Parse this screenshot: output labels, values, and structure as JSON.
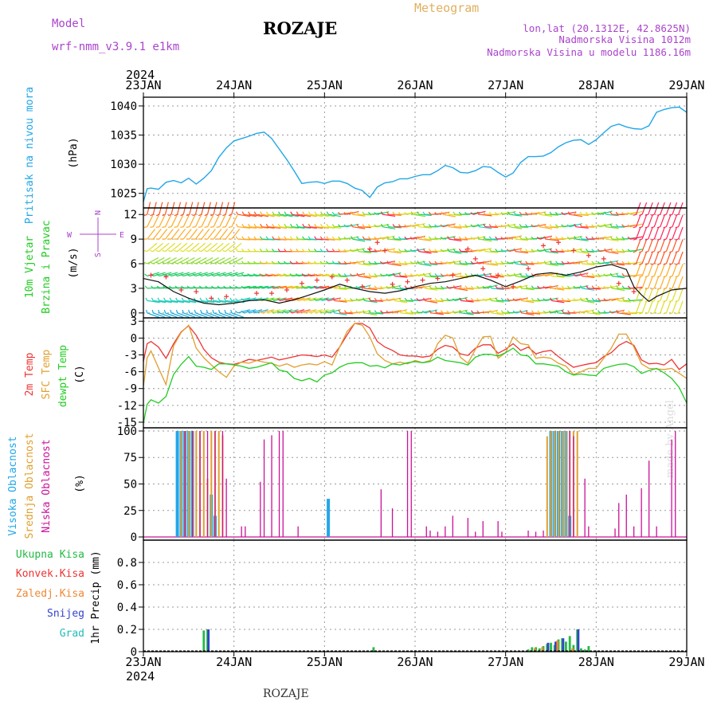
{
  "header": {
    "model_label": "Model",
    "model_name": "wrf-nmm_v3.9.1 e1km",
    "location_title": "ROZAJE",
    "meteogram_label": "Meteogram",
    "coords": "lon,lat (20.1312E, 42.8625N)",
    "altitude": "Nadmorska Visina 1012m",
    "model_altitude": "Nadmorska Visina u modelu 1186.16m",
    "year": "2024",
    "footer_location": "ROZAJE",
    "signature": "made by Angel"
  },
  "colors": {
    "pressure": "#22a6e8",
    "temp2m": "#ee3333",
    "sfc": "#e0a030",
    "dewpt": "#22cc22",
    "cloud_high": "#22a6e8",
    "cloud_mid": "#e0a030",
    "cloud_low": "#cc1199",
    "precip_total": "#22bb44",
    "precip_conv": "#ee3333",
    "precip_frozen": "#ee8833",
    "precip_snow": "#3344cc",
    "precip_grad": "#22bbbb",
    "gust": "#ee3333",
    "wind_line": "#111111",
    "compass": "#aa44cc"
  },
  "time_axis": {
    "top_labels": [
      "23JAN",
      "24JAN",
      "25JAN",
      "26JAN",
      "27JAN",
      "28JAN",
      "29JAN"
    ],
    "bottom_labels": [
      "23JAN",
      "24JAN",
      "25JAN",
      "26JAN",
      "27JAN",
      "28JAN",
      "29JAN"
    ],
    "range_hours": [
      0,
      144
    ]
  },
  "chart_data": [
    {
      "type": "line",
      "panel": "pressure",
      "ylabel_main": "Pritisak na nivou mora",
      "ylabel_unit": "(hPa)",
      "yticks": [
        1025,
        1030,
        1035,
        1040
      ],
      "ylim": [
        1022.5,
        1041.5
      ],
      "series": [
        {
          "x": [
            0,
            1,
            2,
            4,
            6,
            8,
            10,
            12,
            14,
            16,
            18,
            20,
            22,
            24,
            26,
            28,
            30,
            32,
            34,
            36,
            38,
            40,
            42,
            44,
            46,
            48,
            50,
            52,
            54,
            56,
            58,
            60,
            62,
            64,
            66,
            68,
            70,
            72,
            74,
            76,
            78,
            80,
            82,
            84,
            86,
            88,
            90,
            92,
            94,
            96,
            98,
            100,
            102,
            104,
            106,
            108,
            110,
            112,
            114,
            116,
            118,
            120,
            122,
            124,
            126,
            128,
            130,
            132,
            134,
            136,
            138,
            140,
            142,
            144
          ],
          "values": [
            1023.6,
            1025.8,
            1025.9,
            1025.7,
            1026.9,
            1027.2,
            1026.8,
            1027.6,
            1026.6,
            1027.6,
            1028.9,
            1031.2,
            1032.8,
            1034.0,
            1034.4,
            1034.8,
            1035.3,
            1035.5,
            1034.4,
            1032.6,
            1030.8,
            1028.8,
            1026.7,
            1026.9,
            1027.0,
            1026.7,
            1027.1,
            1027.1,
            1026.7,
            1025.9,
            1025.5,
            1024.3,
            1026.1,
            1026.8,
            1027.0,
            1027.5,
            1027.5,
            1027.9,
            1028.2,
            1028.2,
            1028.9,
            1029.8,
            1029.4,
            1028.6,
            1028.5,
            1028.9,
            1029.6,
            1029.5,
            1028.6,
            1027.8,
            1028.5,
            1030.3,
            1031.3,
            1031.3,
            1031.4,
            1032.0,
            1033.0,
            1033.7,
            1034.1,
            1034.2,
            1033.4,
            1034.2,
            1035.4,
            1036.5,
            1036.9,
            1036.4,
            1036.1,
            1036.0,
            1036.6,
            1038.9,
            1039.4,
            1039.7,
            1039.8,
            1038.9
          ]
        }
      ]
    },
    {
      "type": "barbs",
      "panel": "wind",
      "ylabel_main": "10m Vjetar",
      "ylabel_sub": "Brzina i Pravac",
      "ylabel_unit": "(m/s)",
      "compass": {
        "n": "N",
        "s": "S",
        "w": "W",
        "e": "E"
      },
      "yticks": [
        0,
        3,
        6,
        9,
        12
      ],
      "ylim": [
        -0.6,
        12.8
      ],
      "series": [
        {
          "name": "wind speed",
          "x": [
            0,
            4,
            8,
            12,
            16,
            20,
            24,
            28,
            32,
            36,
            40,
            44,
            48,
            52,
            56,
            60,
            64,
            68,
            72,
            76,
            80,
            84,
            88,
            92,
            96,
            100,
            104,
            108,
            112,
            116,
            120,
            124,
            128,
            130,
            132,
            134,
            136,
            140,
            144
          ],
          "values": [
            4.2,
            3.8,
            2.6,
            1.8,
            1.2,
            1.0,
            1.2,
            1.5,
            1.6,
            1.2,
            1.6,
            2.2,
            2.8,
            3.5,
            3.0,
            2.6,
            2.4,
            2.7,
            3.2,
            3.6,
            3.8,
            4.2,
            4.6,
            4.0,
            3.2,
            3.9,
            4.7,
            4.9,
            4.6,
            5.0,
            5.6,
            5.9,
            5.3,
            3.2,
            2.2,
            1.4,
            2.0,
            2.8,
            3.0
          ]
        },
        {
          "name": "gust",
          "x": [
            2,
            6,
            10,
            14,
            18,
            22,
            30,
            34,
            38,
            42,
            46,
            50,
            54,
            58,
            60,
            62,
            64,
            66,
            70,
            74,
            78,
            82,
            86,
            88,
            90,
            94,
            98,
            102,
            106,
            110,
            114,
            118,
            122,
            126,
            130
          ],
          "values": [
            4.6,
            4.4,
            2.8,
            2.6,
            1.8,
            2.0,
            2.4,
            2.4,
            2.8,
            3.6,
            4.0,
            4.4,
            4.0,
            3.2,
            7.8,
            8.6,
            7.6,
            3.5,
            3.8,
            4.0,
            4.2,
            4.6,
            7.8,
            6.6,
            5.4,
            4.6,
            3.2,
            5.4,
            8.2,
            8.6,
            7.6,
            7.0,
            6.6,
            3.6,
            2.6
          ]
        }
      ]
    },
    {
      "type": "line",
      "panel": "temperature",
      "ylabel_main": "2m Temp",
      "ylabel_sub": "SFC Temp",
      "ylabel_sub2": "dewpt Temp",
      "ylabel_unit": "(C)",
      "yticks": [
        3,
        0,
        -3,
        -6,
        -9,
        -12,
        -15
      ],
      "ylim": [
        -16,
        3.6
      ],
      "x": [
        0,
        1,
        2,
        4,
        6,
        8,
        10,
        12,
        14,
        16,
        18,
        20,
        22,
        24,
        26,
        28,
        30,
        32,
        34,
        36,
        38,
        40,
        42,
        44,
        46,
        48,
        50,
        52,
        54,
        56,
        58,
        60,
        62,
        64,
        66,
        68,
        70,
        72,
        74,
        76,
        78,
        80,
        82,
        84,
        86,
        88,
        90,
        92,
        94,
        96,
        98,
        100,
        102,
        104,
        106,
        108,
        110,
        112,
        114,
        116,
        118,
        120,
        122,
        124,
        126,
        128,
        130,
        132,
        134,
        136,
        138,
        140,
        142,
        144
      ],
      "series": [
        {
          "name": "2m Temp",
          "values": [
            -4.2,
            -1.0,
            -0.6,
            -1.6,
            -3.6,
            -1.0,
            1.1,
            2.2,
            0.5,
            -2.0,
            -3.5,
            -4.3,
            -4.6,
            -4.7,
            -4.3,
            -3.8,
            -4.0,
            -3.7,
            -3.4,
            -3.9,
            -3.6,
            -3.3,
            -3.0,
            -3.1,
            -3.3,
            -3.0,
            -3.4,
            -1.6,
            0.6,
            2.6,
            2.6,
            1.8,
            -0.6,
            -1.6,
            -2.2,
            -3.0,
            -3.2,
            -3.2,
            -3.4,
            -3.2,
            -2.0,
            -1.3,
            -1.6,
            -2.8,
            -3.1,
            -1.8,
            -1.2,
            -1.2,
            -2.7,
            -2.0,
            -1.0,
            -2.2,
            -1.6,
            -2.8,
            -2.4,
            -2.2,
            -3.3,
            -4.3,
            -5.2,
            -4.9,
            -4.6,
            -4.4,
            -3.3,
            -2.6,
            -1.3,
            -0.6,
            -1.3,
            -3.9,
            -4.6,
            -4.5,
            -4.8,
            -3.8,
            -5.6,
            -4.6
          ]
        },
        {
          "name": "SFC Temp",
          "values": [
            -8.6,
            -3.5,
            -2.3,
            -5.3,
            -8.3,
            -1.4,
            1.0,
            2.3,
            -1.8,
            -3.5,
            -4.8,
            -6.0,
            -7.0,
            -5.0,
            -4.3,
            -4.5,
            -4.0,
            -4.3,
            -4.5,
            -5.0,
            -4.6,
            -5.2,
            -4.8,
            -4.6,
            -4.8,
            -4.2,
            -4.8,
            -1.6,
            1.2,
            2.6,
            2.3,
            0.2,
            -2.8,
            -4.0,
            -4.6,
            -4.3,
            -4.6,
            -4.0,
            -4.4,
            -4.0,
            -1.0,
            0.5,
            0.0,
            -3.4,
            -4.5,
            -2.0,
            0.2,
            0.3,
            -3.6,
            -2.6,
            0.2,
            -1.0,
            -1.2,
            -3.6,
            -3.4,
            -3.6,
            -4.5,
            -5.0,
            -6.5,
            -6.0,
            -5.4,
            -5.4,
            -3.6,
            -1.8,
            0.7,
            0.7,
            -1.6,
            -4.6,
            -5.4,
            -5.5,
            -5.6,
            -5.4,
            -6.3,
            -7.2
          ]
        },
        {
          "name": "dewpt Temp",
          "values": [
            -15.2,
            -11.8,
            -11.0,
            -11.6,
            -10.4,
            -6.5,
            -4.7,
            -3.3,
            -5.0,
            -5.2,
            -5.6,
            -4.6,
            -4.6,
            -4.8,
            -5.0,
            -5.4,
            -5.2,
            -4.8,
            -4.4,
            -5.7,
            -6.0,
            -7.2,
            -7.6,
            -7.2,
            -7.8,
            -6.6,
            -6.2,
            -5.2,
            -4.6,
            -4.4,
            -4.4,
            -5.0,
            -4.9,
            -5.3,
            -4.6,
            -4.8,
            -4.4,
            -4.2,
            -4.4,
            -4.2,
            -3.4,
            -4.0,
            -4.2,
            -4.4,
            -4.8,
            -3.4,
            -2.9,
            -2.9,
            -3.2,
            -2.6,
            -1.8,
            -3.0,
            -3.2,
            -4.6,
            -4.6,
            -4.8,
            -5.0,
            -6.0,
            -6.6,
            -6.4,
            -6.6,
            -6.7,
            -5.4,
            -5.0,
            -4.7,
            -4.6,
            -5.1,
            -6.3,
            -5.8,
            -5.4,
            -6.2,
            -7.2,
            -8.8,
            -11.6
          ]
        }
      ]
    },
    {
      "type": "bar",
      "panel": "clouds",
      "ylabel_main": "Visoka Oblacnost",
      "ylabel_sub": "Srednja Oblacnost",
      "ylabel_sub2": "Niska Oblacnost",
      "ylabel_unit": "(%)",
      "yticks": [
        0,
        25,
        50,
        75,
        100
      ],
      "ylim": [
        -3,
        103
      ],
      "series": [
        {
          "name": "Visoka Oblacnost",
          "x": [
            9,
            10,
            11,
            12,
            13,
            18,
            19,
            49,
            108,
            109,
            110,
            111,
            112,
            113
          ],
          "values": [
            100,
            100,
            100,
            100,
            100,
            40,
            20,
            36,
            100,
            100,
            100,
            100,
            100,
            20
          ]
        },
        {
          "name": "Srednja Oblacnost",
          "x": [
            10,
            11,
            12,
            13,
            14,
            15,
            16,
            17,
            18,
            19,
            20,
            21,
            107,
            108,
            109,
            110,
            111,
            112,
            113,
            114,
            115
          ],
          "values": [
            100,
            100,
            100,
            100,
            100,
            100,
            100,
            55,
            100,
            100,
            100,
            96,
            95,
            100,
            100,
            100,
            100,
            100,
            100,
            100,
            100
          ]
        },
        {
          "name": "Niska Oblacnost",
          "x": [
            11,
            13,
            15,
            17,
            19,
            21,
            22,
            26,
            27,
            31,
            32,
            34,
            36,
            37,
            41,
            63,
            66,
            70,
            71,
            75,
            76,
            78,
            80,
            82,
            86,
            88,
            90,
            94,
            95,
            102,
            104,
            106,
            113,
            114,
            117,
            118,
            125,
            126,
            128,
            130,
            132,
            134,
            136,
            140,
            141
          ],
          "values": [
            100,
            100,
            100,
            100,
            100,
            100,
            55,
            10,
            10,
            52,
            92,
            96,
            100,
            100,
            10,
            45,
            27,
            100,
            100,
            10,
            6,
            5,
            10,
            20,
            18,
            5,
            15,
            15,
            5,
            6,
            5,
            6,
            100,
            95,
            55,
            10,
            8,
            32,
            40,
            10,
            46,
            72,
            10,
            92,
            100
          ]
        }
      ]
    },
    {
      "type": "bar",
      "panel": "precip",
      "legend": [
        "Ukupna Kisa",
        "Konvek.Kisa",
        "Zaledj.Kisa",
        "Snijeg",
        "Grad"
      ],
      "ylabel_unit": "1hr Precip (mm)",
      "yticks": [
        0,
        0.2,
        0.4,
        0.6,
        0.8
      ],
      "ylim": [
        0,
        1.0
      ],
      "series": [
        {
          "name": "Ukupna Kisa",
          "x": [
            16,
            17,
            61,
            102,
            103,
            104,
            105,
            106,
            107,
            108,
            109,
            110,
            111,
            112,
            113,
            114,
            115,
            116,
            117,
            118
          ],
          "values": [
            0.19,
            0.2,
            0.04,
            0.02,
            0.04,
            0.04,
            0.03,
            0.05,
            0.07,
            0.08,
            0.06,
            0.11,
            0.12,
            0.09,
            0.14,
            0.06,
            0.2,
            0.03,
            0.02,
            0.05
          ]
        },
        {
          "name": "Snijeg",
          "x": [
            17,
            107,
            109,
            111,
            115
          ],
          "values": [
            0.2,
            0.08,
            0.09,
            0.12,
            0.2
          ]
        },
        {
          "name": "Zaledj.Kisa",
          "x": [
            104,
            106,
            110,
            114
          ],
          "values": [
            0.03,
            0.04,
            0.1,
            0.03
          ]
        }
      ]
    }
  ]
}
